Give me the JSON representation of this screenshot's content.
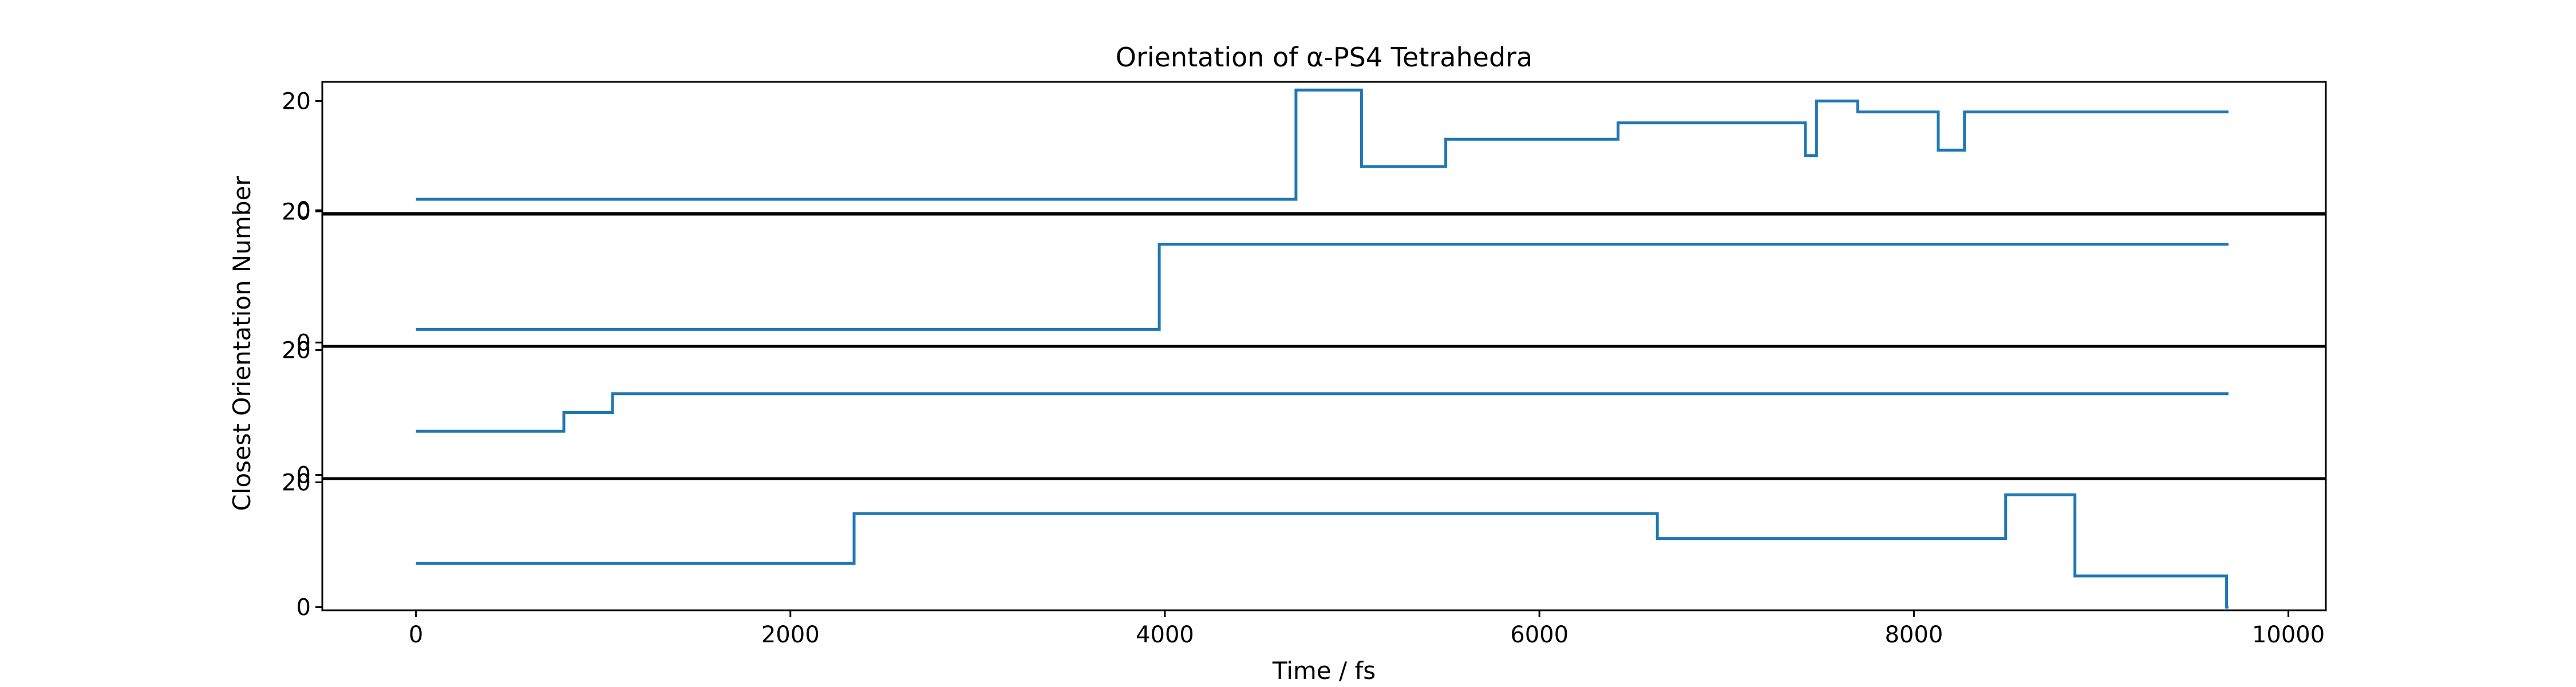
{
  "chart_data": {
    "type": "line",
    "title": "Orientation of α-PS4 Tetrahedra",
    "xlabel": "Time / fs",
    "ylabel": "Closest Orientation Number",
    "xlim": [
      -500,
      10200
    ],
    "x_ticks": [
      0,
      2000,
      4000,
      6000,
      8000,
      10000
    ],
    "y_ticks": [
      0,
      20
    ],
    "grid": false,
    "line_color": "#1f77b4",
    "step": "post",
    "panels": [
      {
        "ylim": [
          -0.5,
          23.5
        ],
        "x": [
          0,
          4700,
          5050,
          5500,
          6420,
          7420,
          7480,
          7700,
          8130,
          8270,
          9680
        ],
        "y": [
          2,
          22,
          8,
          13,
          16,
          10,
          20,
          18,
          11,
          18,
          18
        ]
      },
      {
        "ylim": [
          -0.5,
          19.5
        ],
        "x": [
          0,
          3970,
          9680
        ],
        "y": [
          2,
          15,
          15
        ]
      },
      {
        "ylim": [
          -0.5,
          20.5
        ],
        "x": [
          0,
          790,
          1050,
          9680
        ],
        "y": [
          7,
          10,
          13,
          13
        ]
      },
      {
        "ylim": [
          -0.5,
          20.5
        ],
        "x": [
          0,
          2340,
          6630,
          8490,
          8860,
          9670,
          9680
        ],
        "y": [
          7,
          15,
          11,
          18,
          5,
          0,
          0
        ]
      }
    ]
  }
}
